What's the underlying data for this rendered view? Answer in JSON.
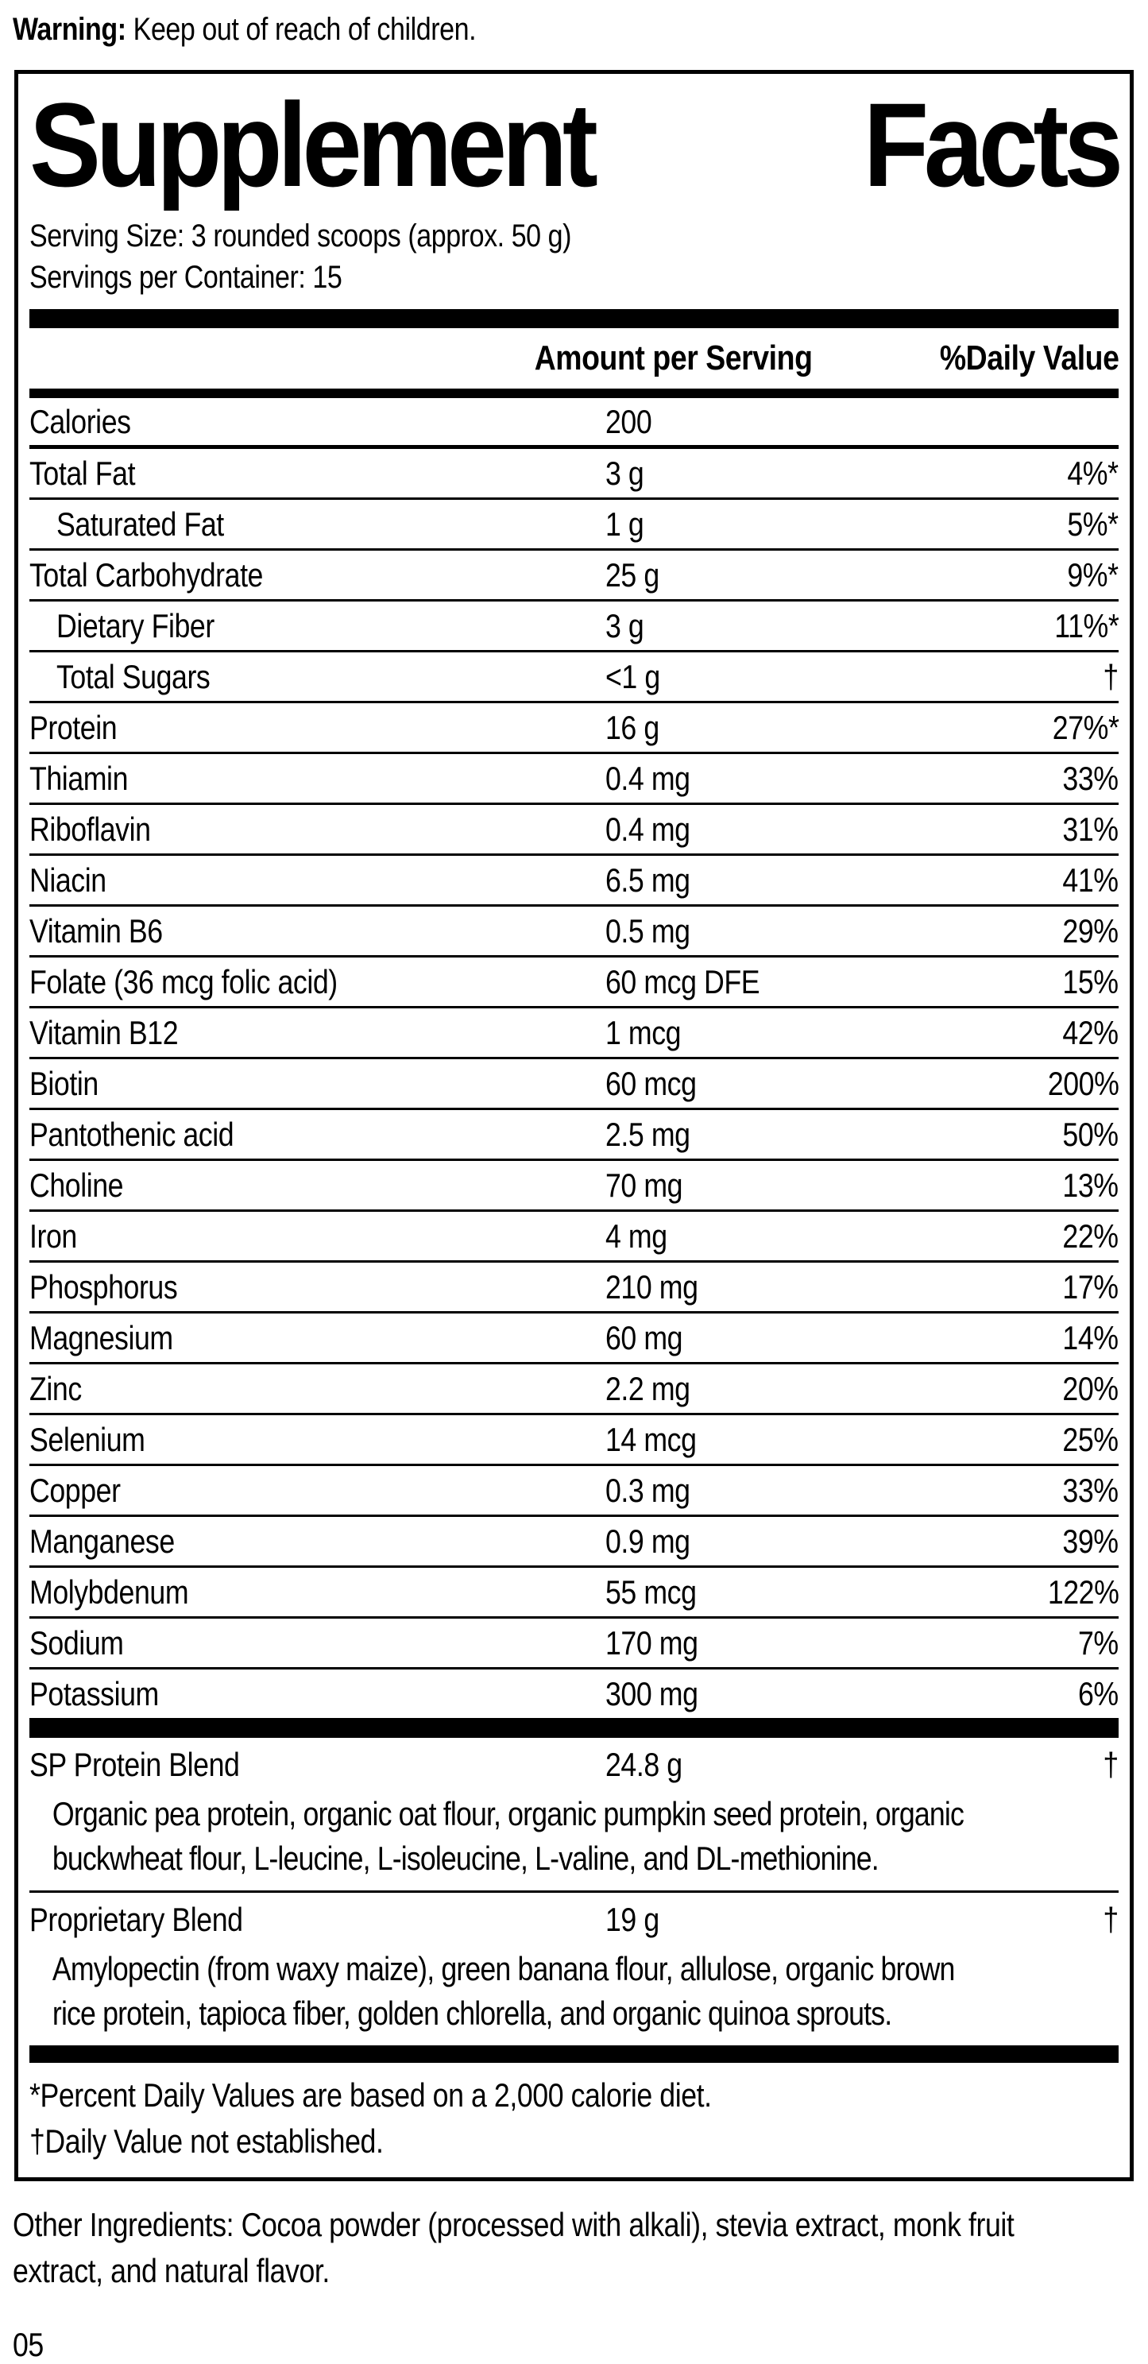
{
  "warning": {
    "label": "Warning:",
    "text": "Keep out of reach of children."
  },
  "panel": {
    "title": {
      "word1": "Supplement",
      "word2": "Facts"
    },
    "serving_size": "Serving Size: 3 rounded scoops (approx. 50 g)",
    "servings_per_container": "Servings per Container: 15",
    "columns": {
      "amount": "Amount per Serving",
      "daily_value": "%Daily Value"
    },
    "rows": [
      {
        "label": "Calories",
        "amount": "200",
        "dv": "",
        "indent": false
      },
      {
        "label": "Total Fat",
        "amount": "3 g",
        "dv": "4%*",
        "indent": false
      },
      {
        "label": "Saturated Fat",
        "amount": "1 g",
        "dv": "5%*",
        "indent": true
      },
      {
        "label": "Total Carbohydrate",
        "amount": "25 g",
        "dv": "9%*",
        "indent": false
      },
      {
        "label": "Dietary Fiber",
        "amount": "3 g",
        "dv": "11%*",
        "indent": true
      },
      {
        "label": "Total Sugars",
        "amount": "<1 g",
        "dv": "†",
        "indent": true
      },
      {
        "label": "Protein",
        "amount": "16 g",
        "dv": "27%*",
        "indent": false
      },
      {
        "label": "Thiamin",
        "amount": "0.4 mg",
        "dv": "33%",
        "indent": false
      },
      {
        "label": "Riboflavin",
        "amount": "0.4 mg",
        "dv": "31%",
        "indent": false
      },
      {
        "label": "Niacin",
        "amount": "6.5 mg",
        "dv": "41%",
        "indent": false
      },
      {
        "label": "Vitamin B6",
        "amount": "0.5 mg",
        "dv": "29%",
        "indent": false
      },
      {
        "label": "Folate (36 mcg folic acid)",
        "amount": "60 mcg DFE",
        "dv": "15%",
        "indent": false
      },
      {
        "label": "Vitamin B12",
        "amount": "1 mcg",
        "dv": "42%",
        "indent": false
      },
      {
        "label": "Biotin",
        "amount": "60 mcg",
        "dv": "200%",
        "indent": false
      },
      {
        "label": "Pantothenic acid",
        "amount": "2.5 mg",
        "dv": "50%",
        "indent": false
      },
      {
        "label": "Choline",
        "amount": "70 mg",
        "dv": "13%",
        "indent": false
      },
      {
        "label": "Iron",
        "amount": "4 mg",
        "dv": "22%",
        "indent": false
      },
      {
        "label": "Phosphorus",
        "amount": "210 mg",
        "dv": "17%",
        "indent": false
      },
      {
        "label": "Magnesium",
        "amount": "60 mg",
        "dv": "14%",
        "indent": false
      },
      {
        "label": "Zinc",
        "amount": "2.2 mg",
        "dv": "20%",
        "indent": false
      },
      {
        "label": "Selenium",
        "amount": "14 mcg",
        "dv": "25%",
        "indent": false
      },
      {
        "label": "Copper",
        "amount": "0.3 mg",
        "dv": "33%",
        "indent": false
      },
      {
        "label": "Manganese",
        "amount": "0.9 mg",
        "dv": "39%",
        "indent": false
      },
      {
        "label": "Molybdenum",
        "amount": "55 mcg",
        "dv": "122%",
        "indent": false
      },
      {
        "label": "Sodium",
        "amount": "170 mg",
        "dv": "7%",
        "indent": false
      },
      {
        "label": "Potassium",
        "amount": "300 mg",
        "dv": "6%",
        "indent": false
      }
    ],
    "blends": [
      {
        "name": "SP Protein Blend",
        "amount": "24.8 g",
        "dv": "†",
        "desc": "Organic pea protein, organic oat flour, organic pumpkin seed protein, organic buckwheat flour, L-leucine, L-isoleucine, L-valine, and DL-methionine."
      },
      {
        "name": "Proprietary Blend",
        "amount": "19 g",
        "dv": "†",
        "desc": "Amylopectin (from waxy maize), green banana flour, allulose, organic brown rice protein, tapioca fiber, golden chlorella, and organic quinoa sprouts."
      }
    ],
    "footnotes": [
      "*Percent Daily Values are based on a 2,000 calorie diet.",
      "†Daily Value not established."
    ]
  },
  "other_ingredients": "Other Ingredients: Cocoa powder (processed with alkali), stevia extract, monk fruit extract, and natural flavor.",
  "page_number": "05"
}
